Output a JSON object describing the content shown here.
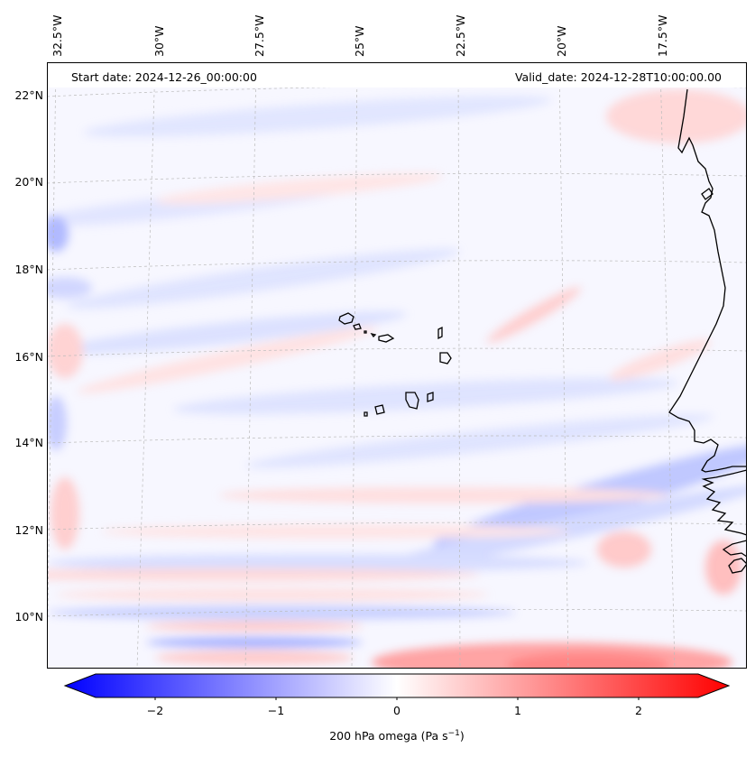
{
  "map": {
    "start_date": "Start date: 2024-12-26_00:00:00",
    "valid_date": "Valid_date: 2024-12-28T10:00:00.00",
    "lon_labels": [
      "32.5°W",
      "30°W",
      "27.5°W",
      "25°W",
      "22.5°W",
      "20°W",
      "17.5°W"
    ],
    "lat_labels": [
      "22°N",
      "20°N",
      "18°N",
      "16°N",
      "14°N",
      "12°N",
      "10°N"
    ]
  },
  "colorbar": {
    "label": "200 hPa omega (Pa s",
    "label_exp": "−1",
    "label_close": ")",
    "ticks": [
      "−2",
      "−1",
      "0",
      "1",
      "2"
    ],
    "min": -2.7,
    "max": 2.7,
    "negative_color": "#0000ff",
    "zero_color": "#ffffff",
    "positive_color": "#ff0000"
  },
  "colors": {
    "coastline": "#000000",
    "gridline": "#bbbbbb"
  }
}
